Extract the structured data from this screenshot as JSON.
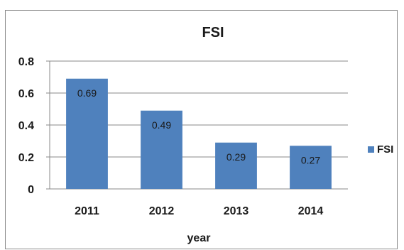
{
  "chart_data": {
    "type": "bar",
    "title": "FSI",
    "xlabel": "year",
    "ylabel": "",
    "categories": [
      "2011",
      "2012",
      "2013",
      "2014"
    ],
    "series": [
      {
        "name": "FSI",
        "values": [
          0.69,
          0.49,
          0.29,
          0.27
        ],
        "color": "#4F81BD"
      }
    ],
    "data_labels": [
      "0.69",
      "0.49",
      "0.29",
      "0.27"
    ],
    "y_ticks": [
      "0",
      "0.2",
      "0.4",
      "0.6",
      "0.8"
    ],
    "y_tick_values": [
      0,
      0.2,
      0.4,
      0.6,
      0.8
    ],
    "ylim": [
      0,
      0.8
    ],
    "grid": true,
    "legend_position": "right"
  }
}
